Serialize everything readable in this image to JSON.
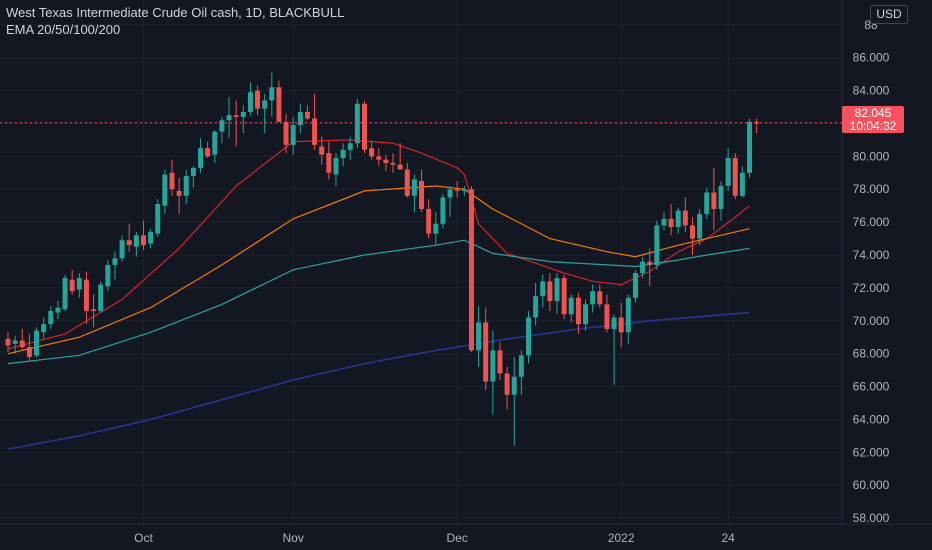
{
  "header": {
    "title": "West Texas Intermediate Crude Oil cash, 1D, BLACKBULL",
    "indicator": "EMA 20/50/100/200",
    "currency_button": "USD"
  },
  "last_price": {
    "value": "82.045",
    "countdown": "10:04:32",
    "level": 82.045
  },
  "colors": {
    "background": "#131722",
    "up": "#26a69a",
    "down": "#ef5350",
    "ema20": "#d6232a",
    "ema50": "#f57c00",
    "ema100": "#26a69a",
    "ema200": "#283593",
    "grid": "#1e222d",
    "axis_text": "#b2b5be",
    "price_line": "#f7525f"
  },
  "chart_data": {
    "type": "candlestick",
    "title": "West Texas Intermediate Crude Oil cash, 1D, BLACKBULL",
    "ylabel": "USD",
    "ylim": [
      57.4,
      88.9
    ],
    "y_ticks": [
      58,
      60,
      62,
      64,
      66,
      68,
      70,
      72,
      74,
      76,
      78,
      80,
      82,
      84,
      86,
      88
    ],
    "y_tick_labels": [
      "58.000",
      "60.000",
      "62.000",
      "64.000",
      "66.000",
      "68.000",
      "70.000",
      "72.000",
      "74.000",
      "76.000",
      "78.000",
      "80.000",
      "82.000",
      "84.000",
      "86.000",
      "88"
    ],
    "x_ticks": [
      {
        "label": "Oct",
        "index": 19
      },
      {
        "label": "Nov",
        "index": 40
      },
      {
        "label": "Dec",
        "index": 63
      },
      {
        "label": "2022",
        "index": 86
      },
      {
        "label": "24",
        "index": 101
      }
    ],
    "grid": true,
    "candles": [
      [
        68.9,
        69.3,
        68.1,
        68.5
      ],
      [
        68.6,
        69.1,
        68.0,
        68.8
      ],
      [
        68.8,
        69.5,
        68.2,
        68.4
      ],
      [
        68.4,
        69.2,
        67.6,
        67.8
      ],
      [
        67.9,
        69.6,
        67.8,
        69.4
      ],
      [
        69.3,
        70.2,
        68.9,
        69.8
      ],
      [
        69.8,
        70.9,
        69.5,
        70.6
      ],
      [
        70.5,
        71.2,
        70.1,
        70.8
      ],
      [
        70.7,
        72.8,
        70.6,
        72.6
      ],
      [
        72.5,
        73.1,
        71.6,
        71.8
      ],
      [
        71.9,
        72.9,
        71.4,
        72.6
      ],
      [
        72.5,
        73.0,
        69.8,
        70.6
      ],
      [
        70.7,
        71.6,
        69.6,
        70.6
      ],
      [
        70.6,
        72.4,
        70.5,
        72.2
      ],
      [
        72.1,
        73.7,
        71.8,
        73.4
      ],
      [
        73.4,
        74.2,
        72.5,
        73.8
      ],
      [
        73.8,
        75.2,
        73.6,
        74.9
      ],
      [
        74.9,
        75.9,
        74.2,
        74.6
      ],
      [
        74.5,
        75.4,
        73.9,
        75.2
      ],
      [
        75.2,
        76.1,
        74.3,
        74.6
      ],
      [
        74.7,
        75.6,
        74.4,
        75.4
      ],
      [
        75.3,
        77.4,
        75.1,
        77.1
      ],
      [
        77.0,
        79.2,
        76.5,
        78.9
      ],
      [
        79.0,
        79.8,
        77.6,
        78.0
      ],
      [
        77.9,
        78.7,
        76.5,
        77.6
      ],
      [
        77.6,
        79.2,
        77.1,
        78.8
      ],
      [
        78.8,
        79.4,
        78.1,
        79.3
      ],
      [
        79.3,
        81.1,
        79.0,
        80.5
      ],
      [
        80.5,
        80.9,
        79.9,
        80.0
      ],
      [
        80.1,
        81.6,
        79.6,
        81.5
      ],
      [
        81.5,
        82.4,
        80.8,
        82.2
      ],
      [
        82.2,
        83.6,
        81.1,
        82.5
      ],
      [
        82.5,
        83.4,
        80.6,
        82.4
      ],
      [
        82.4,
        83.1,
        81.4,
        82.7
      ],
      [
        82.7,
        84.5,
        82.5,
        83.9
      ],
      [
        84.0,
        84.3,
        82.5,
        82.9
      ],
      [
        82.9,
        83.8,
        81.4,
        83.4
      ],
      [
        83.4,
        85.1,
        82.4,
        84.2
      ],
      [
        84.2,
        84.6,
        82.1,
        82.1
      ],
      [
        82.1,
        82.6,
        80.2,
        80.7
      ],
      [
        80.7,
        82.4,
        80.1,
        81.9
      ],
      [
        81.9,
        83.2,
        81.4,
        82.7
      ],
      [
        82.7,
        83.1,
        82.2,
        82.3
      ],
      [
        82.3,
        83.8,
        80.4,
        80.7
      ],
      [
        80.6,
        81.2,
        79.5,
        80.1
      ],
      [
        80.2,
        80.9,
        78.6,
        79.0
      ],
      [
        78.9,
        80.2,
        78.2,
        79.9
      ],
      [
        79.9,
        80.8,
        79.4,
        80.4
      ],
      [
        80.4,
        81.2,
        79.8,
        80.8
      ],
      [
        80.8,
        83.5,
        80.5,
        83.2
      ],
      [
        83.2,
        83.4,
        80.2,
        80.4
      ],
      [
        80.5,
        80.9,
        79.8,
        80.0
      ],
      [
        80.0,
        80.5,
        79.4,
        79.8
      ],
      [
        79.8,
        80.1,
        79.1,
        79.6
      ],
      [
        79.6,
        80.2,
        79.0,
        79.5
      ],
      [
        79.5,
        80.8,
        79.3,
        79.2
      ],
      [
        79.2,
        79.6,
        77.5,
        77.6
      ],
      [
        77.6,
        78.9,
        76.6,
        78.6
      ],
      [
        78.5,
        79.2,
        76.6,
        76.8
      ],
      [
        76.8,
        77.4,
        75.0,
        75.3
      ],
      [
        75.3,
        76.6,
        74.6,
        75.9
      ],
      [
        75.9,
        77.7,
        75.6,
        77.5
      ],
      [
        77.5,
        78.2,
        76.3,
        78.0
      ],
      [
        78.0,
        78.5,
        77.5,
        77.9
      ],
      [
        77.9,
        78.2,
        77.6,
        78.0
      ],
      [
        78.0,
        78.2,
        68.1,
        68.2
      ],
      [
        68.2,
        70.9,
        67.2,
        69.9
      ],
      [
        69.9,
        70.8,
        65.8,
        66.3
      ],
      [
        66.3,
        69.4,
        64.3,
        68.2
      ],
      [
        68.2,
        68.7,
        66.4,
        66.8
      ],
      [
        66.8,
        67.2,
        64.6,
        65.5
      ],
      [
        65.5,
        67.8,
        62.4,
        66.6
      ],
      [
        66.6,
        68.2,
        65.5,
        67.9
      ],
      [
        67.9,
        70.6,
        67.4,
        70.2
      ],
      [
        70.2,
        72.3,
        69.7,
        71.5
      ],
      [
        71.5,
        72.8,
        70.8,
        72.4
      ],
      [
        72.4,
        72.9,
        70.6,
        71.2
      ],
      [
        71.2,
        72.9,
        70.4,
        72.6
      ],
      [
        72.6,
        72.8,
        70.1,
        70.4
      ],
      [
        70.4,
        71.6,
        69.9,
        71.4
      ],
      [
        71.4,
        71.7,
        69.2,
        69.8
      ],
      [
        69.8,
        71.3,
        69.4,
        71.0
      ],
      [
        71.0,
        72.2,
        70.5,
        71.8
      ],
      [
        71.8,
        72.2,
        70.8,
        71.0
      ],
      [
        71.0,
        71.6,
        69.3,
        69.5
      ],
      [
        69.5,
        70.4,
        66.1,
        70.2
      ],
      [
        70.2,
        71.1,
        68.4,
        69.3
      ],
      [
        69.3,
        71.6,
        68.6,
        71.4
      ],
      [
        71.4,
        73.1,
        71.1,
        72.9
      ],
      [
        72.9,
        73.9,
        72.6,
        73.6
      ],
      [
        73.6,
        74.4,
        72.1,
        73.4
      ],
      [
        73.4,
        76.1,
        73.1,
        75.8
      ],
      [
        75.8,
        76.6,
        75.5,
        76.2
      ],
      [
        76.2,
        77.1,
        75.2,
        75.7
      ],
      [
        75.7,
        76.9,
        75.3,
        76.7
      ],
      [
        76.7,
        77.5,
        75.4,
        75.8
      ],
      [
        75.8,
        76.3,
        74.0,
        75.0
      ],
      [
        75.0,
        76.8,
        74.6,
        76.5
      ],
      [
        76.5,
        78.1,
        76.2,
        77.8
      ],
      [
        77.8,
        79.3,
        75.5,
        76.8
      ],
      [
        76.8,
        78.5,
        76.1,
        78.2
      ],
      [
        78.2,
        80.5,
        77.9,
        79.9
      ],
      [
        79.9,
        80.2,
        77.4,
        77.6
      ],
      [
        77.6,
        79.4,
        77.5,
        79.0
      ],
      [
        79.0,
        82.3,
        78.7,
        82.1
      ],
      [
        82.1,
        82.3,
        81.4,
        82.0
      ]
    ],
    "series": [
      {
        "name": "EMA 20",
        "values": [
          [
            0,
            68.3
          ],
          [
            8,
            69.2
          ],
          [
            16,
            71.3
          ],
          [
            24,
            74.4
          ],
          [
            32,
            78.2
          ],
          [
            40,
            80.9
          ],
          [
            48,
            81.0
          ],
          [
            54,
            80.8
          ],
          [
            58,
            80.2
          ],
          [
            63,
            79.3
          ],
          [
            64,
            78.9
          ],
          [
            66,
            75.9
          ],
          [
            70,
            74.1
          ],
          [
            74,
            73.5
          ],
          [
            78,
            72.9
          ],
          [
            82,
            72.4
          ],
          [
            86,
            72.2
          ],
          [
            90,
            73.0
          ],
          [
            94,
            74.2
          ],
          [
            98,
            75.0
          ],
          [
            102,
            76.3
          ],
          [
            104,
            77.0
          ]
        ]
      },
      {
        "name": "EMA 50",
        "values": [
          [
            0,
            68.0
          ],
          [
            10,
            69.0
          ],
          [
            20,
            70.8
          ],
          [
            30,
            73.4
          ],
          [
            40,
            76.2
          ],
          [
            50,
            77.9
          ],
          [
            60,
            78.2
          ],
          [
            64,
            78.0
          ],
          [
            68,
            76.8
          ],
          [
            76,
            75.0
          ],
          [
            84,
            74.2
          ],
          [
            88,
            73.9
          ],
          [
            94,
            74.6
          ],
          [
            98,
            75.0
          ],
          [
            104,
            75.6
          ]
        ]
      },
      {
        "name": "EMA 100",
        "values": [
          [
            0,
            67.4
          ],
          [
            10,
            67.9
          ],
          [
            20,
            69.3
          ],
          [
            30,
            71.0
          ],
          [
            40,
            73.1
          ],
          [
            50,
            74.0
          ],
          [
            60,
            74.6
          ],
          [
            64,
            74.9
          ],
          [
            68,
            74.1
          ],
          [
            76,
            73.6
          ],
          [
            84,
            73.4
          ],
          [
            88,
            73.3
          ],
          [
            94,
            73.7
          ],
          [
            98,
            74.0
          ],
          [
            104,
            74.4
          ]
        ]
      },
      {
        "name": "EMA 200",
        "values": [
          [
            0,
            62.2
          ],
          [
            10,
            63.0
          ],
          [
            20,
            64.0
          ],
          [
            30,
            65.2
          ],
          [
            40,
            66.4
          ],
          [
            50,
            67.4
          ],
          [
            60,
            68.2
          ],
          [
            70,
            68.9
          ],
          [
            80,
            69.5
          ],
          [
            90,
            70.0
          ],
          [
            104,
            70.5
          ]
        ]
      }
    ]
  }
}
